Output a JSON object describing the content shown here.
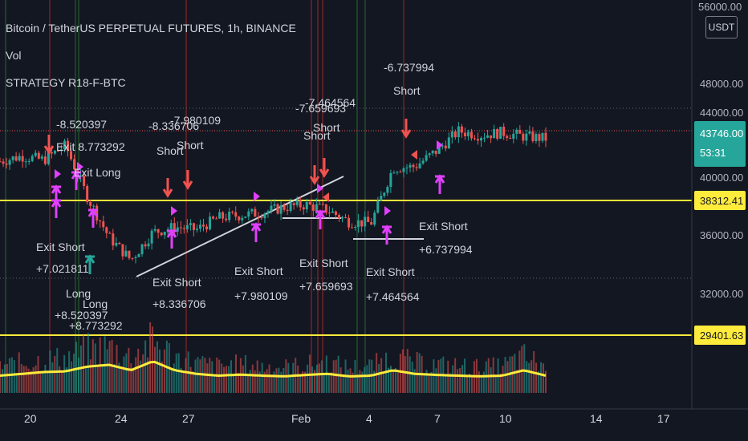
{
  "header": {
    "title": "Bitcoin / TetherUS PERPETUAL FUTURES, 1h, BINANCE",
    "indicator_vol": "Vol",
    "indicator_strategy": "STRATEGY R18-F-BTC"
  },
  "price_axis": {
    "currency_badge": "USDT",
    "top_partial_label": "56000.00",
    "ticks": [
      {
        "label": "48000.00",
        "value": 48000
      },
      {
        "label": "44000.00",
        "value": 44000
      },
      {
        "label": "40000.00",
        "value": 40000
      },
      {
        "label": "36000.00",
        "value": 36000
      },
      {
        "label": "32000.00",
        "value": 32000
      }
    ],
    "last_price": {
      "label": "43746.00",
      "value": 43746,
      "countdown": "53:31",
      "color": "#26a69a"
    },
    "levels": [
      {
        "label": "38312.41",
        "value": 38312.41,
        "color": "#ffeb3b"
      },
      {
        "label": "29401.63",
        "value": 29401.63,
        "color": "#ffeb3b"
      }
    ]
  },
  "time_axis": {
    "ticks": [
      "20",
      "24",
      "27",
      "Feb",
      "4",
      "7",
      "10",
      "14",
      "17"
    ]
  },
  "annotations": [
    {
      "lines": [
        "-8.520397"
      ],
      "kind": "label"
    },
    {
      "lines": [
        "Exit ",
        "8.773292"
      ],
      "kind": "label"
    },
    {
      "lines": [
        "Exit Long"
      ],
      "kind": "label"
    },
    {
      "lines": [
        "Exit Short",
        "+7.021811"
      ],
      "kind": "label"
    },
    {
      "lines": [
        "Long",
        "+8.520397"
      ],
      "kind": "label"
    },
    {
      "lines": [
        "Long",
        "+8.773292"
      ],
      "kind": "label"
    },
    {
      "lines": [
        "-8.336706",
        "Short"
      ],
      "kind": "label"
    },
    {
      "lines": [
        "-7.980109",
        "Short"
      ],
      "kind": "label"
    },
    {
      "lines": [
        "Exit Short",
        "+8.336706"
      ],
      "kind": "label"
    },
    {
      "lines": [
        "Exit Short",
        "+7.980109"
      ],
      "kind": "label"
    },
    {
      "lines": [
        "-7.659693",
        "Short"
      ],
      "kind": "label"
    },
    {
      "lines": [
        "-7.464564",
        "Short"
      ],
      "kind": "label"
    },
    {
      "lines": [
        "Exit Short",
        "+7.659693"
      ],
      "kind": "label"
    },
    {
      "lines": [
        "Exit Short",
        "+7.464564"
      ],
      "kind": "label"
    },
    {
      "lines": [
        "-6.737994",
        "Short"
      ],
      "kind": "label"
    },
    {
      "lines": [
        "Exit Short",
        "+6.737994"
      ],
      "kind": "label"
    }
  ],
  "chart_data": {
    "type": "line",
    "price_series": {
      "name": "",
      "x": [
        "Jan 18",
        "Jan 19",
        "Jan 20",
        "Jan 21",
        "Jan 22",
        "Jan 23",
        "Jan 24",
        "Jan 25",
        "Jan 26",
        "Jan 27",
        "Jan 28",
        "Jan 29",
        "Jan 30",
        "Jan 31",
        "Feb 1",
        "Feb 2",
        "Feb 3",
        "Feb 4",
        "Feb 5",
        "Feb 6",
        "Feb 7",
        "Feb 8",
        "Feb 9",
        "Feb 10",
        "Feb 11",
        "Feb 12"
      ],
      "values": [
        42000,
        42400,
        42100,
        43200,
        39300,
        36200,
        34500,
        36600,
        37000,
        36800,
        37700,
        37900,
        38100,
        38500,
        38700,
        38300,
        37400,
        37300,
        41500,
        41600,
        42800,
        44300,
        44000,
        44200,
        43900,
        43746
      ]
    },
    "volume_ma_series": {
      "name": "",
      "values": [
        0.3,
        0.35,
        0.4,
        0.42,
        0.55,
        0.6,
        0.45,
        0.7,
        0.45,
        0.35,
        0.3,
        0.33,
        0.3,
        0.28,
        0.32,
        0.35,
        0.28,
        0.3,
        0.45,
        0.35,
        0.32,
        0.3,
        0.28,
        0.3,
        0.45,
        0.3
      ]
    },
    "ylim": [
      26000,
      56000
    ],
    "grid": false,
    "legend": "top-left"
  }
}
